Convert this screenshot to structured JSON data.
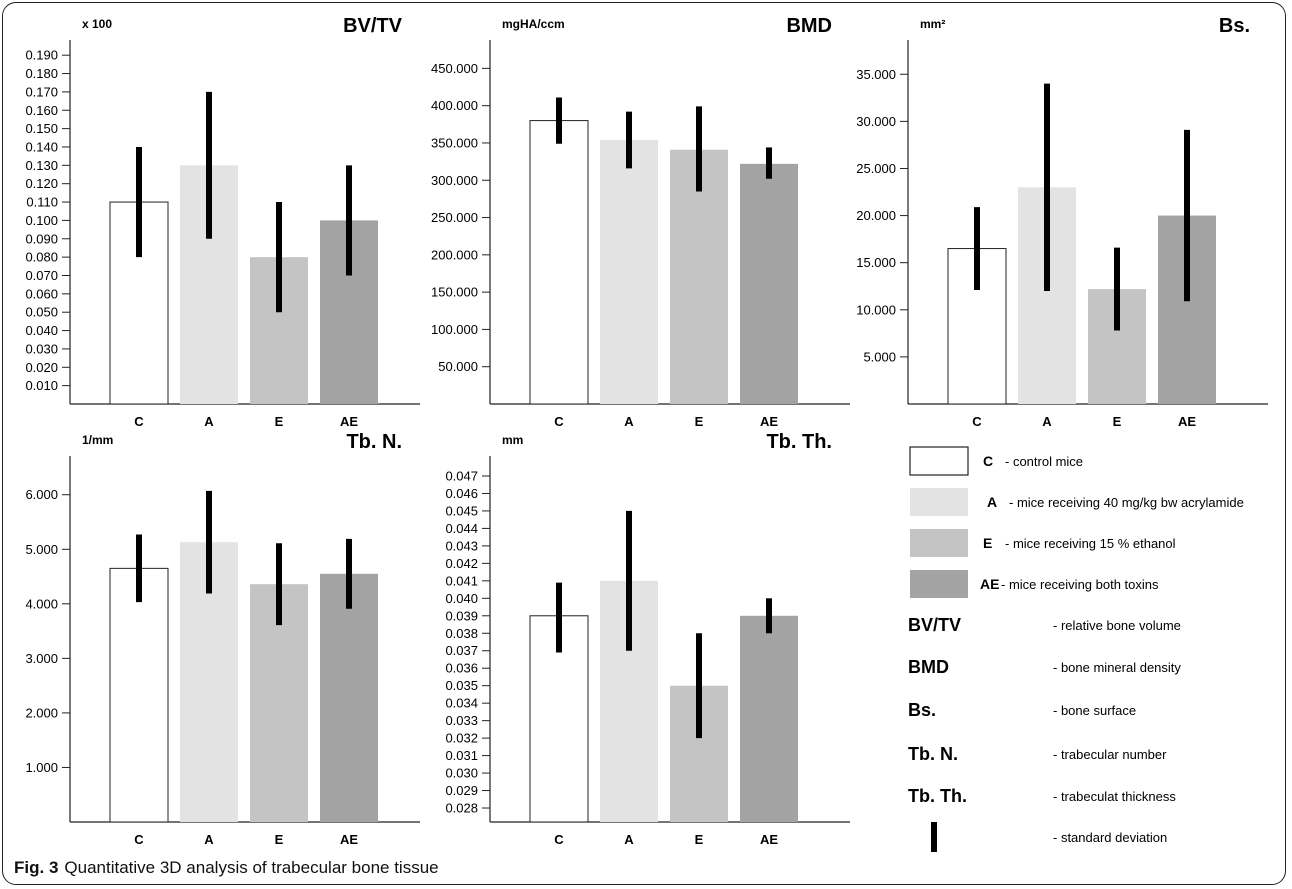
{
  "figure": {
    "label": "Fig. 3",
    "caption": "Quantitative 3D analysis of trabecular bone tissue"
  },
  "colors": {
    "C": "#ffffff",
    "A": "#e3e3e3",
    "E": "#c4c4c4",
    "AE": "#a3a3a3",
    "error_bar": "#000000",
    "axis": "#222222"
  },
  "legend": {
    "groups": [
      {
        "key": "C",
        "description": "- control mice"
      },
      {
        "key": "A",
        "description": "- mice receiving 40 mg/kg bw acrylamide"
      },
      {
        "key": "E",
        "description": "- mice receiving 15 % ethanol"
      },
      {
        "key": "AE",
        "description": "- mice receiving both toxins"
      }
    ],
    "abbreviations": [
      {
        "term": "BV/TV",
        "description": "- relative bone volume"
      },
      {
        "term": "BMD",
        "description": "- bone mineral density"
      },
      {
        "term": "Bs.",
        "description": "- bone surface"
      },
      {
        "term": "Tb. N.",
        "description": "- trabecular number"
      },
      {
        "term": "Tb. Th.",
        "description": "- trabeculat thickness"
      }
    ],
    "error_bar_description": "- standard deviation"
  },
  "chart_data": [
    {
      "type": "bar",
      "title": "BV/TV",
      "unit": "x 100",
      "categories": [
        "C",
        "A",
        "E",
        "AE"
      ],
      "values": [
        0.11,
        0.13,
        0.08,
        0.1
      ],
      "error_low": [
        0.08,
        0.09,
        0.05,
        0.07
      ],
      "error_high": [
        0.14,
        0.17,
        0.11,
        0.13
      ],
      "ylim": [
        0,
        0.195
      ],
      "yticks": [
        "0.010",
        "0.020",
        "0.030",
        "0.040",
        "0.050",
        "0.060",
        "0.070",
        "0.080",
        "0.090",
        "0.100",
        "0.110",
        "0.120",
        "0.130",
        "0.140",
        "0.150",
        "0.160",
        "0.170",
        "0.180",
        "0.190"
      ],
      "ytick_values": [
        0.01,
        0.02,
        0.03,
        0.04,
        0.05,
        0.06,
        0.07,
        0.08,
        0.09,
        0.1,
        0.11,
        0.12,
        0.13,
        0.14,
        0.15,
        0.16,
        0.17,
        0.18,
        0.19
      ],
      "grid": false
    },
    {
      "type": "bar",
      "title": "BMD",
      "unit": "mgHA/ccm",
      "categories": [
        "C",
        "A",
        "E",
        "AE"
      ],
      "values": [
        380,
        354,
        341,
        322
      ],
      "error_low": [
        349,
        316,
        285,
        302
      ],
      "error_high": [
        411,
        392,
        399,
        344
      ],
      "ylim": [
        0,
        480
      ],
      "yticks": [
        "50.000",
        "100.000",
        "150.000",
        "200.000",
        "250.000",
        "300.000",
        "350.000",
        "400.000",
        "450.000"
      ],
      "ytick_values": [
        50,
        100,
        150,
        200,
        250,
        300,
        350,
        400,
        450
      ],
      "grid": false
    },
    {
      "type": "bar",
      "title": "Bs.",
      "unit": "mm²",
      "categories": [
        "C",
        "A",
        "E",
        "AE"
      ],
      "values": [
        16.5,
        23.0,
        12.2,
        20.0
      ],
      "error_low": [
        12.1,
        12.0,
        7.8,
        10.9
      ],
      "error_high": [
        20.9,
        34.0,
        16.6,
        29.1
      ],
      "ylim": [
        0,
        38
      ],
      "yticks": [
        "5.000",
        "10.000",
        "15.000",
        "20.000",
        "25.000",
        "30.000",
        "35.000"
      ],
      "ytick_values": [
        5,
        10,
        15,
        20,
        25,
        30,
        35
      ],
      "grid": false
    },
    {
      "type": "bar",
      "title": "Tb. N.",
      "unit": "1/mm",
      "categories": [
        "C",
        "A",
        "E",
        "AE"
      ],
      "values": [
        4.65,
        5.13,
        4.36,
        4.55
      ],
      "error_low": [
        4.03,
        4.19,
        3.61,
        3.91
      ],
      "error_high": [
        5.27,
        6.07,
        5.11,
        5.19
      ],
      "ylim": [
        0,
        6.6
      ],
      "yticks": [
        "1.000",
        "2.000",
        "3.000",
        "4.000",
        "5.000",
        "6.000"
      ],
      "ytick_values": [
        1,
        2,
        3,
        4,
        5,
        6
      ],
      "grid": false
    },
    {
      "type": "bar",
      "title": "Tb. Th.",
      "unit": "mm",
      "categories": [
        "C",
        "A",
        "E",
        "AE"
      ],
      "values": [
        0.039,
        0.041,
        0.035,
        0.039
      ],
      "error_low": [
        0.0369,
        0.037,
        0.032,
        0.038
      ],
      "error_high": [
        0.0409,
        0.045,
        0.038,
        0.04
      ],
      "ylim": [
        0.0272,
        0.0478
      ],
      "yticks": [
        "0.028",
        "0.029",
        "0.030",
        "0.031",
        "0.032",
        "0.033",
        "0.034",
        "0.035",
        "0.036",
        "0.037",
        "0.038",
        "0.039",
        "0.040",
        "0.041",
        "0.042",
        "0.043",
        "0.044",
        "0.045",
        "0.046",
        "0.047"
      ],
      "ytick_values": [
        0.028,
        0.029,
        0.03,
        0.031,
        0.032,
        0.033,
        0.034,
        0.035,
        0.036,
        0.037,
        0.038,
        0.039,
        0.04,
        0.041,
        0.042,
        0.043,
        0.044,
        0.045,
        0.046,
        0.047
      ],
      "grid": false
    }
  ]
}
